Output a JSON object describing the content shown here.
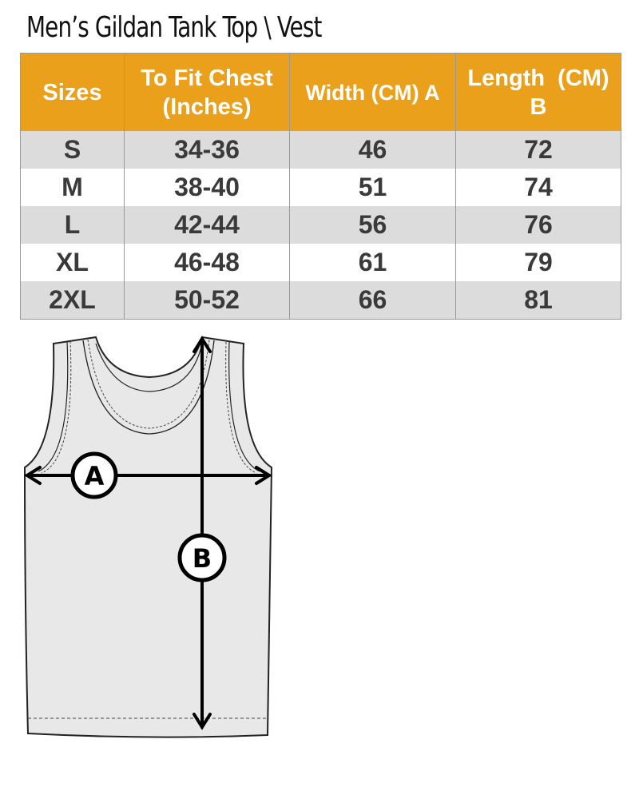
{
  "title": "Men’s Gildan Tank Top \\ Vest",
  "table": {
    "headers": [
      "Sizes",
      "To Fit Chest (Inches)",
      "Width (CM) A",
      "Length  (CM) B"
    ],
    "rows": [
      [
        "S",
        "34-36",
        "46",
        "72"
      ],
      [
        "M",
        "38-40",
        "51",
        "74"
      ],
      [
        "L",
        "42-44",
        "56",
        "76"
      ],
      [
        "XL",
        "46-48",
        "61",
        "79"
      ],
      [
        "2XL",
        "50-52",
        "66",
        "81"
      ]
    ]
  },
  "diagram": {
    "label_a": "A",
    "label_b": "B"
  },
  "colors": {
    "header": "#eba01b",
    "row_alt": "#dcdcdc",
    "garment": "#e8e8e8"
  }
}
